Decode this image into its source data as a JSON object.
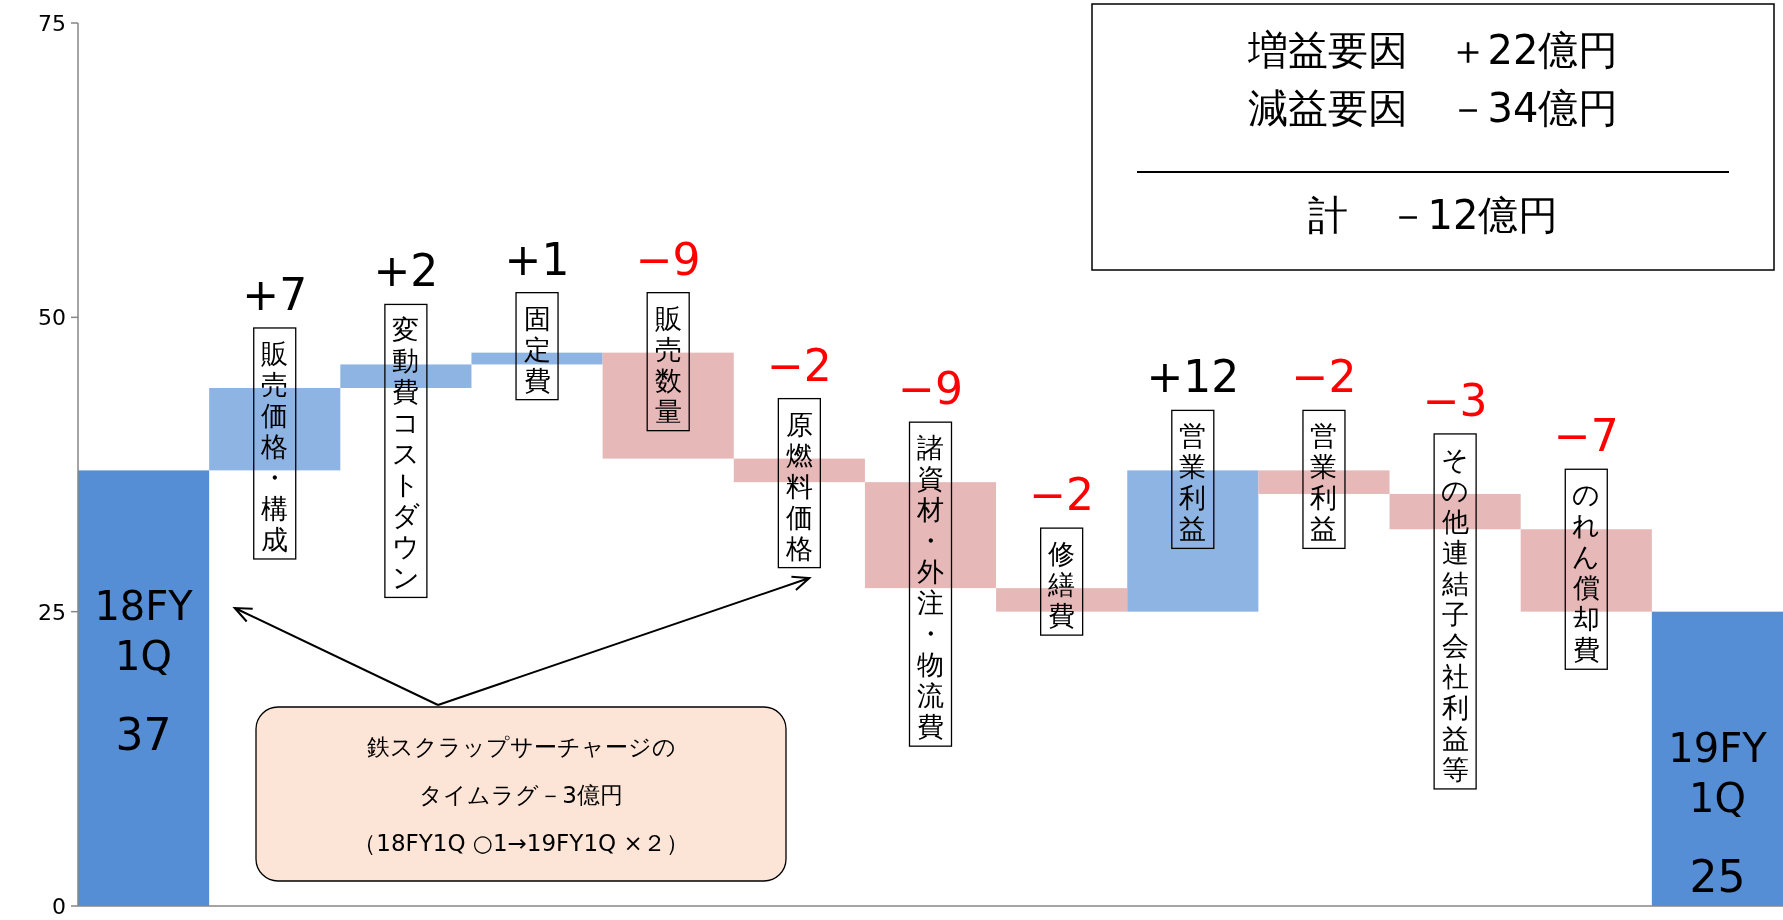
{
  "chart_data": {
    "type": "bar",
    "categories": [
      "18FY 1Q",
      "販売価格・構成",
      "変動費コストダウン",
      "固定費",
      "販売数量",
      "原燃料価格",
      "諸資材・外注・物流費",
      "修繕費",
      "営業利益",
      "営業利益",
      "その他連結子会社利益等",
      "のれん償却費",
      "19FY 1Q"
    ],
    "base": [
      0,
      37,
      44,
      46,
      47,
      38,
      36,
      27,
      25,
      37,
      35,
      32,
      0
    ],
    "values": [
      37,
      7,
      2,
      1,
      -9,
      -2,
      -9,
      -2,
      12,
      -2,
      -3,
      -7,
      25
    ],
    "colors": [
      "#558ed5",
      "#8eb4e3",
      "#8eb4e3",
      "#8eb4e3",
      "#e6b9b8",
      "#e6b9b8",
      "#e6b9b8",
      "#e6b9b8",
      "#8eb4e3",
      "#e6b9b8",
      "#e6b9b8",
      "#e6b9b8",
      "#558ed5"
    ],
    "value_labels": [
      "37",
      "+7",
      "+2",
      "+1",
      "−9",
      "−2",
      "−9",
      "−2",
      "+12",
      "−2",
      "−3",
      "−7",
      "25"
    ],
    "ylim": [
      0,
      75
    ],
    "yticks": [
      0,
      25,
      50,
      75
    ],
    "annotations": [
      "増益要因　＋22億円",
      "減益要因　－34億円",
      "計　－12億円",
      "鉄スクラップサーチャージの",
      "タイムラグ－3億円",
      "（18FY1Q ○1→19FY1Q ×２）"
    ]
  }
}
